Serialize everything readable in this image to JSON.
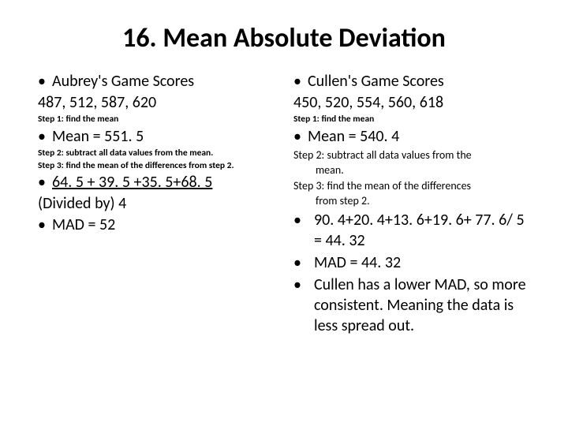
{
  "title": "16. Mean Absolute Deviation",
  "left": {
    "headerLabel": "Aubrey's Game Scores",
    "scores": "487, 512, 587, 620",
    "step1": "Step 1: find the mean",
    "meanLine": "Mean = 551. 5",
    "step2": "Step 2: subtract all data values from the mean.",
    "step3": "Step 3: find the mean of the differences from step 2.",
    "sumLine": "64. 5 + 39. 5 +35. 5+68. 5",
    "dividedBy": "(Divided by)  4",
    "madLine": "MAD = 52"
  },
  "right": {
    "headerLabel": "Cullen's Game Scores",
    "scores": "450, 520, 554, 560, 618",
    "step1": "Step 1: find the mean",
    "meanLine": "Mean = 540. 4",
    "step2a": "Step 2: subtract all data values from the",
    "step2b": "mean.",
    "step3a": "Step 3: find the mean of the differences",
    "step3b": "from step 2.",
    "calc": "90. 4+20. 4+13. 6+19. 6+ 77. 6/ 5 = 44. 32",
    "madLine": "MAD = 44. 32",
    "conclusion": "Cullen has a lower MAD, so more consistent.  Meaning the data is less spread out."
  }
}
